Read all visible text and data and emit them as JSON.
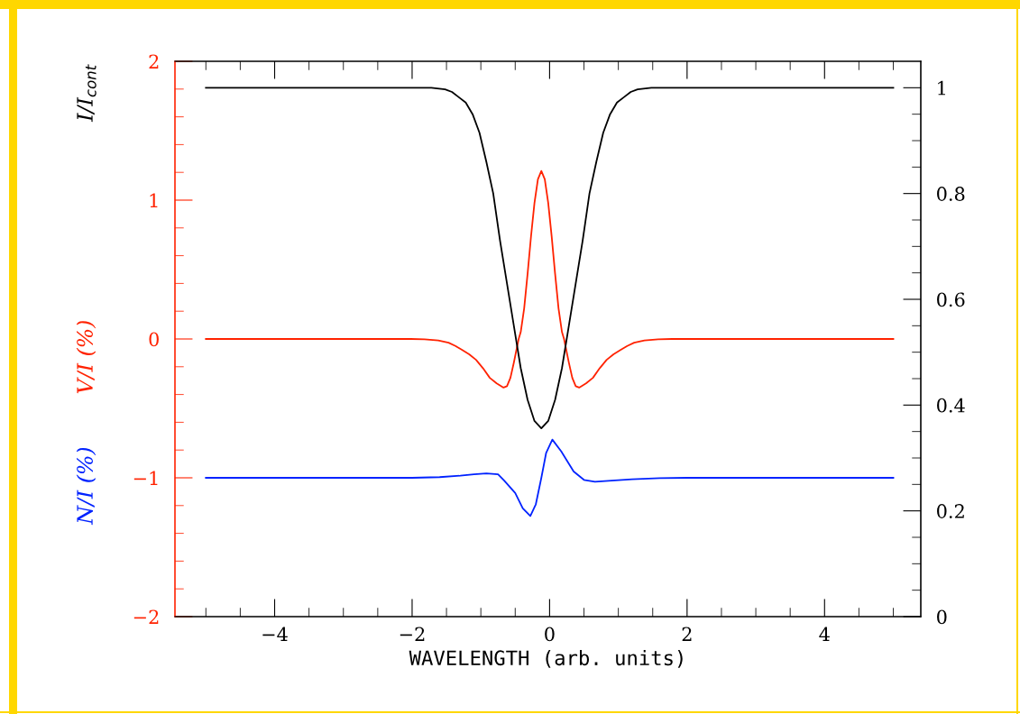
{
  "chart_data": {
    "type": "line",
    "xlabel": "WAVELENGTH (arb. units)",
    "xlim": [
      -5.45,
      5.4
    ],
    "xticks": [
      {
        "value": -5,
        "label": null
      },
      {
        "value": -4.5,
        "label": null
      },
      {
        "value": -4,
        "label": "−4"
      },
      {
        "value": -3.5,
        "label": null
      },
      {
        "value": -3,
        "label": null
      },
      {
        "value": -2.5,
        "label": null
      },
      {
        "value": -2,
        "label": "−2"
      },
      {
        "value": -1.5,
        "label": null
      },
      {
        "value": -1,
        "label": null
      },
      {
        "value": -0.5,
        "label": null
      },
      0,
      {
        "value": 0.5,
        "label": null
      },
      {
        "value": 1,
        "label": null
      },
      {
        "value": 1.5,
        "label": null
      },
      2,
      {
        "value": 2.5,
        "label": null
      },
      {
        "value": 3,
        "label": null
      },
      {
        "value": 3.5,
        "label": null
      },
      4,
      {
        "value": 4.5,
        "label": null
      },
      {
        "value": 5,
        "label": null
      }
    ],
    "ylim": [
      -2,
      2
    ],
    "yticks": [
      {
        "value": -2,
        "label": "−2"
      },
      {
        "value": -1.8,
        "label": null
      },
      {
        "value": -1.6,
        "label": null
      },
      {
        "value": -1.4,
        "label": null
      },
      {
        "value": -1.2,
        "label": null
      },
      {
        "value": -1,
        "label": "−1"
      },
      {
        "value": -0.8,
        "label": null
      },
      {
        "value": -0.6,
        "label": null
      },
      {
        "value": -0.4,
        "label": null
      },
      {
        "value": -0.2,
        "label": null
      },
      0,
      {
        "value": 0.2,
        "label": null
      },
      {
        "value": 0.4,
        "label": null
      },
      {
        "value": 0.6,
        "label": null
      },
      {
        "value": 0.8,
        "label": null
      },
      1,
      {
        "value": 1.2,
        "label": null
      },
      {
        "value": 1.4,
        "label": null
      },
      {
        "value": 1.6,
        "label": null
      },
      {
        "value": 1.8,
        "label": null
      },
      2
    ],
    "y2lim": [
      0,
      1.05
    ],
    "y2ticks": [
      0,
      {
        "value": 0.05,
        "label": null
      },
      {
        "value": 0.1,
        "label": null
      },
      {
        "value": 0.15,
        "label": null
      },
      0.2,
      {
        "value": 0.25,
        "label": null
      },
      {
        "value": 0.3,
        "label": null
      },
      {
        "value": 0.35,
        "label": null
      },
      0.4,
      {
        "value": 0.45,
        "label": null
      },
      {
        "value": 0.5,
        "label": null
      },
      {
        "value": 0.55,
        "label": null
      },
      0.6,
      {
        "value": 0.65,
        "label": null
      },
      {
        "value": 0.7,
        "label": null
      },
      {
        "value": 0.75,
        "label": null
      },
      0.8,
      {
        "value": 0.85,
        "label": null
      },
      {
        "value": 0.9,
        "label": null
      },
      {
        "value": 0.95,
        "label": null
      },
      1
    ],
    "series": [
      {
        "name": "V/I (%)",
        "color": "#ff2200",
        "axis": "y",
        "x": [
          -5,
          -2.02,
          -1.82,
          -1.62,
          -1.47,
          -1.37,
          -1.27,
          -1.17,
          -1.07,
          -0.97,
          -0.87,
          -0.77,
          -0.67,
          -0.62,
          -0.57,
          -0.52,
          -0.45,
          -0.42,
          -0.37,
          -0.32,
          -0.27,
          -0.22,
          -0.17,
          -0.12,
          -0.07,
          -0.02,
          0.03,
          0.08,
          0.13,
          0.18,
          0.21,
          0.28,
          0.33,
          0.38,
          0.43,
          0.53,
          0.63,
          0.73,
          0.83,
          0.93,
          1.03,
          1.13,
          1.23,
          1.38,
          1.58,
          1.78,
          5
        ],
        "values": [
          0,
          0,
          -0.002,
          -0.01,
          -0.027,
          -0.05,
          -0.08,
          -0.11,
          -0.15,
          -0.21,
          -0.28,
          -0.32,
          -0.35,
          -0.34,
          -0.28,
          -0.17,
          0,
          0.05,
          0.22,
          0.47,
          0.74,
          0.98,
          1.15,
          1.21,
          1.15,
          0.98,
          0.74,
          0.47,
          0.22,
          0.05,
          0,
          -0.17,
          -0.28,
          -0.34,
          -0.35,
          -0.32,
          -0.28,
          -0.21,
          -0.15,
          -0.11,
          -0.08,
          -0.05,
          -0.027,
          -0.01,
          -0.002,
          0,
          0
        ]
      },
      {
        "name": "N/I (%)",
        "color": "#0022ff",
        "axis": "y",
        "x": [
          -5,
          -2.0,
          -1.6,
          -1.3,
          -1.1,
          -0.92,
          -0.75,
          -0.66,
          -0.5,
          -0.39,
          -0.28,
          -0.2,
          -0.12,
          -0.05,
          0.04,
          0.17,
          0.35,
          0.5,
          0.66,
          0.9,
          1.2,
          1.6,
          2.0,
          5
        ],
        "values": [
          -1,
          -1,
          -0.995,
          -0.985,
          -0.975,
          -0.968,
          -0.975,
          -1.02,
          -1.11,
          -1.22,
          -1.275,
          -1.19,
          -1.0,
          -0.82,
          -0.725,
          -0.81,
          -0.955,
          -1.015,
          -1.028,
          -1.02,
          -1.01,
          -1.003,
          -1.0,
          -1
        ]
      },
      {
        "name": "I/I$_{cont}$",
        "color": "#000000",
        "axis": "y2",
        "x": [
          -5,
          -1.92,
          -1.72,
          -1.52,
          -1.42,
          -1.32,
          -1.22,
          -1.12,
          -1.02,
          -0.92,
          -0.82,
          -0.72,
          -0.62,
          -0.52,
          -0.42,
          -0.32,
          -0.22,
          -0.12,
          -0.02,
          0.08,
          0.18,
          0.28,
          0.38,
          0.48,
          0.58,
          0.68,
          0.78,
          0.88,
          0.98,
          1.08,
          1.18,
          1.28,
          1.48,
          5
        ],
        "values": [
          1,
          1,
          1,
          0.997,
          0.992,
          0.982,
          0.972,
          0.95,
          0.915,
          0.86,
          0.8,
          0.71,
          0.63,
          0.55,
          0.47,
          0.41,
          0.37,
          0.356,
          0.37,
          0.41,
          0.47,
          0.55,
          0.63,
          0.71,
          0.8,
          0.86,
          0.915,
          0.95,
          0.972,
          0.982,
          0.992,
          0.997,
          1,
          1
        ]
      }
    ]
  }
}
